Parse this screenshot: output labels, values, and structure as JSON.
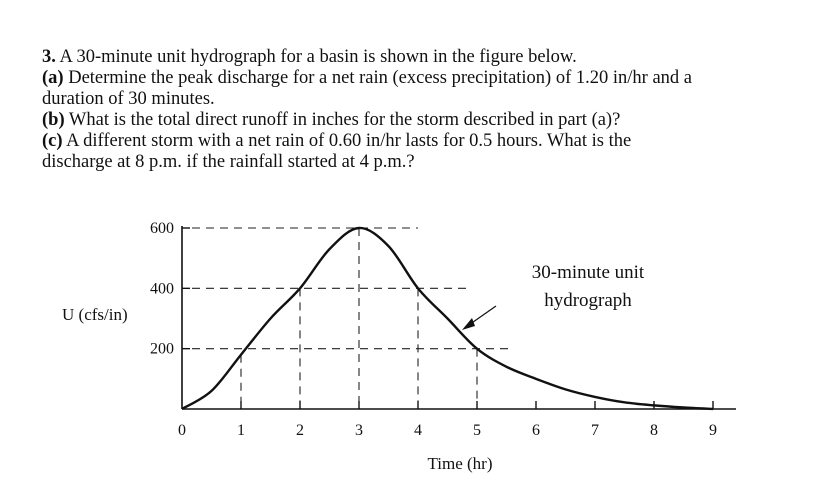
{
  "problem": {
    "number": "3.",
    "intro_line1": "A 30-minute unit hydrograph for a basin is shown in the figure below.",
    "part_a_label": "(a)",
    "part_a_line1": "Determine the peak discharge for a net rain (excess precipitation) of 1.20 in/hr and a",
    "part_a_line2": "duration of 30 minutes.",
    "part_b_label": "(b)",
    "part_b_line1": "What is the total direct runoff in inches for the storm described in part (a)?",
    "part_c_label": "(c)",
    "part_c_line1": "A different storm with a net rain of 0.60 in/hr lasts for 0.5 hours.  What is the",
    "part_c_line2": "discharge at 8 p.m. if the rainfall started at 4 p.m.?"
  },
  "chart_data": {
    "type": "line",
    "title": "",
    "xlabel": "Time (hr)",
    "ylabel": "U (cfs/in)",
    "xlim": [
      0,
      9
    ],
    "ylim": [
      0,
      600
    ],
    "x_ticks": [
      0,
      1,
      2,
      3,
      4,
      5,
      6,
      7,
      8,
      9
    ],
    "y_ticks": [
      200,
      400,
      600
    ],
    "grid": "dashed guide lines",
    "annotation": {
      "line1": "30-minute unit",
      "line2": "hydrograph"
    },
    "series": [
      {
        "x": [
          0,
          0.5,
          1,
          1.5,
          2,
          2.5,
          3,
          3.5,
          4,
          4.5,
          5,
          5.5,
          6,
          6.5,
          7,
          7.5,
          8,
          8.5,
          9
        ],
        "values": [
          0,
          60,
          180,
          300,
          400,
          530,
          600,
          540,
          400,
          300,
          200,
          140,
          100,
          65,
          40,
          22,
          12,
          5,
          0
        ]
      }
    ],
    "guide_points": [
      {
        "x": 1,
        "y": 180
      },
      {
        "x": 2,
        "y": 400
      },
      {
        "x": 3,
        "y": 600
      },
      {
        "x": 4,
        "y": 400
      },
      {
        "x": 5,
        "y": 200
      }
    ]
  }
}
